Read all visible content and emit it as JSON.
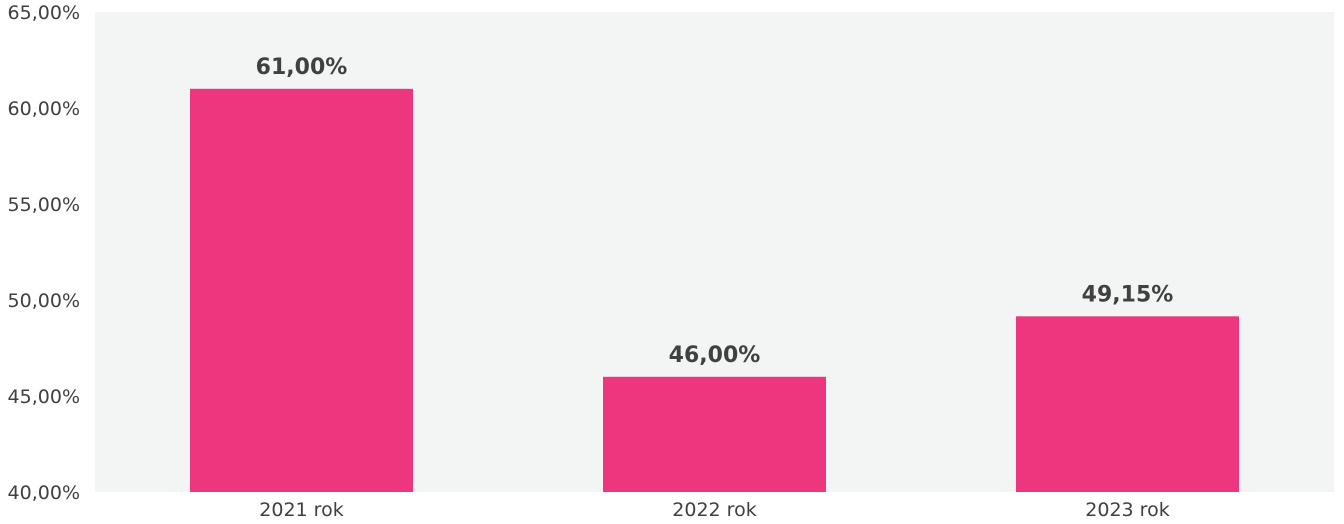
{
  "colors": {
    "plot_background": "#f3f4f4",
    "bar": "#ee367e",
    "text": "#404040"
  },
  "chart_data": {
    "type": "bar",
    "title": "",
    "xlabel": "",
    "ylabel": "",
    "categories": [
      "2021 rok",
      "2022 rok",
      "2023 rok"
    ],
    "values": [
      61.0,
      46.0,
      49.15
    ],
    "data_labels": [
      "61,00%",
      "46,00%",
      "49,15%"
    ],
    "ylim": [
      40,
      65
    ],
    "yticks": [
      40,
      45,
      50,
      55,
      60,
      65
    ],
    "ytick_labels": [
      "40,00%",
      "45,00%",
      "50,00%",
      "55,00%",
      "60,00%",
      "65,00%"
    ],
    "grid": false,
    "legend": "none"
  }
}
